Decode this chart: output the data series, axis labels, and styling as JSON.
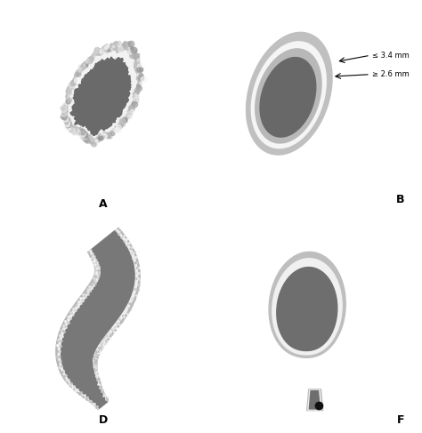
{
  "background": "#ffffff",
  "labels": [
    "A",
    "B",
    "D",
    "F"
  ],
  "col_outer": "#b0b0b0",
  "col_wall_light": "#e8e8e8",
  "col_wall_mid": "#c8c8c8",
  "col_lumen": "#6e6e6e",
  "col_lumen_dark": "#646464",
  "col_neck": "#989898",
  "annotation_1": "≤ 3.4 mm",
  "annotation_2": "≥ 2.6 mm",
  "dot_color": "#111111"
}
